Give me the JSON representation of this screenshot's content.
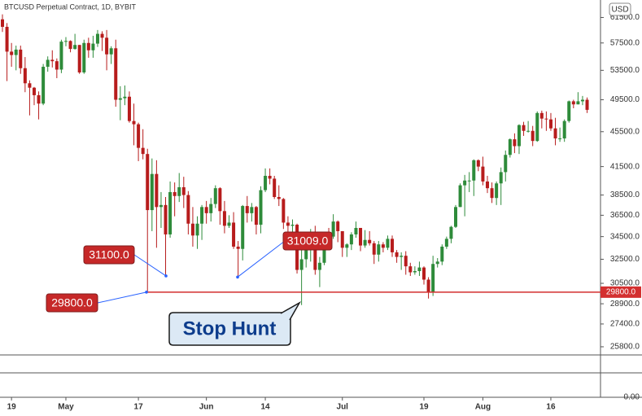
{
  "chart_data": {
    "type": "candlestick",
    "title": "BTCUSD Perpetual Contract, 1D, BYBIT",
    "currency": "USD",
    "log_scale": true,
    "up_color": "#2e8b3a",
    "down_color": "#b71c1c",
    "ylim": [
      25250,
      64400
    ],
    "yticks": [
      {
        "value": 61500,
        "label": "61500.0"
      },
      {
        "value": 57500,
        "label": "57500.0"
      },
      {
        "value": 53500,
        "label": "53500.0"
      },
      {
        "value": 49500,
        "label": "49500.0"
      },
      {
        "value": 45500,
        "label": "45500.0"
      },
      {
        "value": 41500,
        "label": "41500.0"
      },
      {
        "value": 38500,
        "label": "38500.0"
      },
      {
        "value": 36500,
        "label": "36500.0"
      },
      {
        "value": 34500,
        "label": "34500.0"
      },
      {
        "value": 32500,
        "label": "32500.0"
      },
      {
        "value": 30500,
        "label": "30500.0"
      },
      {
        "value": 28900,
        "label": "28900.0"
      },
      {
        "value": 27400,
        "label": "27400.0"
      },
      {
        "value": 25800,
        "label": "25800.0"
      }
    ],
    "lower_pane_tick": {
      "value": 0,
      "label": "0.00"
    },
    "categories": [
      null,
      null,
      "19",
      null,
      null,
      null,
      null,
      null,
      null,
      null,
      null,
      null,
      null,
      null,
      "May",
      null,
      null,
      null,
      null,
      null,
      null,
      null,
      null,
      null,
      null,
      null,
      null,
      null,
      null,
      null,
      "17",
      null,
      null,
      null,
      null,
      null,
      null,
      null,
      null,
      null,
      null,
      null,
      null,
      null,
      null,
      "Jun",
      null,
      null,
      null,
      null,
      null,
      null,
      null,
      null,
      null,
      null,
      null,
      null,
      "14",
      null,
      null,
      null,
      null,
      null,
      null,
      null,
      null,
      null,
      null,
      null,
      null,
      null,
      null,
      null,
      null,
      "Jul",
      null,
      null,
      null,
      null,
      null,
      null,
      null,
      null,
      null,
      null,
      null,
      null,
      null,
      null,
      null,
      null,
      null,
      "19",
      null,
      null,
      null,
      null,
      null,
      null,
      null,
      null,
      null,
      null,
      null,
      null,
      "Aug",
      null,
      null,
      null,
      null,
      null,
      null,
      null,
      null,
      null,
      null,
      null,
      null,
      null,
      null,
      "16",
      null,
      null,
      null,
      null,
      null,
      null,
      null,
      null
    ],
    "open": [
      61200,
      60000,
      56200,
      55700,
      56500,
      53800,
      51700,
      51100,
      50100,
      49000,
      54000,
      55000,
      54800,
      53600,
      57700,
      57800,
      56600,
      57200,
      53200,
      57500,
      56400,
      57400,
      58900,
      58300,
      55800,
      56700,
      49500,
      49700,
      49900,
      46800,
      46400,
      43600,
      42900,
      37000,
      40700,
      37300,
      37500,
      34700,
      38800,
      38400,
      39300,
      38500,
      35700,
      34600,
      35700,
      37300,
      36700,
      37600,
      39200,
      36900,
      35500,
      35800,
      33600,
      33400,
      37400,
      36700,
      37300,
      35600,
      39000,
      40500,
      40200,
      38300,
      38100,
      35800,
      35500,
      35600,
      31600,
      32500,
      33700,
      34700,
      31600,
      32200,
      34700,
      34500,
      35900,
      35000,
      33500,
      33800,
      34700,
      35300,
      33700,
      34200,
      33900,
      32900,
      33800,
      33500,
      34300,
      33100,
      32700,
      32800,
      31900,
      31400,
      31500,
      31800,
      30800,
      29800,
      32100,
      32300,
      33600,
      34300,
      35400,
      37300,
      39500,
      40000,
      40000,
      42200,
      41500,
      39900,
      39200,
      38200,
      39700,
      40900,
      42800,
      44600,
      43800,
      46300,
      45600,
      45600,
      44400,
      47800,
      47100,
      47000,
      45900,
      44700,
      44700,
      46800,
      49300,
      48900,
      49300,
      49500
    ],
    "high": [
      62000,
      60600,
      57500,
      57100,
      57100,
      55400,
      52100,
      51200,
      50600,
      54400,
      55500,
      56400,
      55200,
      58000,
      58400,
      57900,
      58900,
      57200,
      58000,
      58300,
      58600,
      59500,
      59300,
      59500,
      57000,
      58000,
      51300,
      51400,
      50600,
      49000,
      46600,
      45800,
      43500,
      42400,
      42200,
      38800,
      38300,
      39900,
      39800,
      40800,
      40400,
      38900,
      37300,
      36400,
      37500,
      37900,
      38200,
      39500,
      39300,
      37900,
      36500,
      36800,
      34100,
      37500,
      38400,
      37700,
      37400,
      39400,
      41300,
      41300,
      40500,
      39500,
      38200,
      36400,
      36100,
      35700,
      33300,
      34800,
      35200,
      35500,
      32700,
      34700,
      35300,
      36600,
      36000,
      35000,
      33900,
      34900,
      35900,
      35300,
      35100,
      35000,
      34100,
      34100,
      34000,
      34600,
      34600,
      33300,
      33100,
      33200,
      32200,
      31900,
      32300,
      31900,
      31000,
      32800,
      32600,
      33800,
      34500,
      35500,
      37500,
      39700,
      40600,
      40900,
      42300,
      42300,
      42600,
      40500,
      39800,
      39900,
      41400,
      43300,
      44700,
      45300,
      46400,
      46700,
      46800,
      46200,
      48000,
      48100,
      48000,
      47800,
      47200,
      46000,
      47000,
      49400,
      49500,
      50500,
      50000,
      49800
    ],
    "low": [
      59200,
      52000,
      54000,
      53500,
      53000,
      50500,
      47500,
      48800,
      47000,
      48800,
      53300,
      53900,
      52400,
      53100,
      57000,
      56100,
      56500,
      53000,
      53000,
      55300,
      55300,
      56900,
      56300,
      53500,
      54400,
      48600,
      46900,
      48800,
      46600,
      43900,
      42100,
      42300,
      29800,
      35000,
      33500,
      35300,
      31100,
      34400,
      36400,
      37800,
      37200,
      34700,
      33600,
      33400,
      34200,
      35700,
      35900,
      37200,
      35600,
      34800,
      35300,
      33400,
      31009,
      32400,
      35800,
      35900,
      34700,
      34800,
      38800,
      39600,
      38100,
      37400,
      35200,
      34800,
      33400,
      31300,
      28800,
      31800,
      32300,
      31200,
      30200,
      32000,
      33900,
      34300,
      34000,
      32700,
      32700,
      33300,
      34400,
      33200,
      33500,
      33700,
      32100,
      32300,
      33100,
      33300,
      32700,
      32200,
      31600,
      31200,
      31100,
      31200,
      31100,
      30400,
      29300,
      29500,
      31800,
      32000,
      33400,
      33900,
      35300,
      37300,
      36400,
      38800,
      38400,
      41000,
      39500,
      38700,
      37700,
      37500,
      37500,
      39900,
      42500,
      43000,
      42900,
      45000,
      45400,
      43800,
      44300,
      45900,
      45600,
      45600,
      43900,
      44300,
      44300,
      46600,
      48400,
      48900,
      48800,
      47800
    ],
    "close": [
      60000,
      56200,
      55700,
      56500,
      53800,
      51700,
      51100,
      50100,
      49000,
      54000,
      55000,
      54800,
      53600,
      57700,
      57800,
      56600,
      57200,
      53200,
      57500,
      56400,
      57400,
      58900,
      58300,
      55800,
      56700,
      49500,
      49700,
      49900,
      46800,
      46400,
      43600,
      42900,
      37000,
      40700,
      37300,
      37500,
      34700,
      38800,
      38400,
      39300,
      38500,
      35700,
      34600,
      35700,
      37300,
      36700,
      37600,
      39200,
      36900,
      35500,
      35800,
      33600,
      33400,
      37400,
      36700,
      37300,
      35600,
      39000,
      40500,
      40200,
      38300,
      38100,
      35800,
      35500,
      35600,
      31600,
      32500,
      33700,
      34700,
      31600,
      32200,
      34700,
      34500,
      35900,
      35000,
      33500,
      33800,
      34700,
      35300,
      33700,
      34200,
      33900,
      32900,
      33800,
      33500,
      34300,
      33100,
      32700,
      32800,
      31900,
      31400,
      31500,
      31800,
      30800,
      29800,
      32100,
      32300,
      33600,
      34300,
      35400,
      37300,
      39500,
      40000,
      40000,
      42200,
      41500,
      39900,
      39200,
      38200,
      39700,
      40900,
      42800,
      44600,
      43800,
      46300,
      45600,
      45600,
      44400,
      47800,
      47100,
      47000,
      45900,
      44700,
      44700,
      46800,
      49300,
      48900,
      49300,
      49500,
      48200
    ],
    "hline": {
      "value": 29800,
      "label": "29800.0",
      "color": "#d32f2f"
    },
    "annotations": [
      {
        "label": "31100.0",
        "value": 31100
      },
      {
        "label": "31009.0",
        "value": 31009
      },
      {
        "label": "29800.0",
        "value": 29800
      }
    ],
    "callout": "Stop Hunt"
  }
}
